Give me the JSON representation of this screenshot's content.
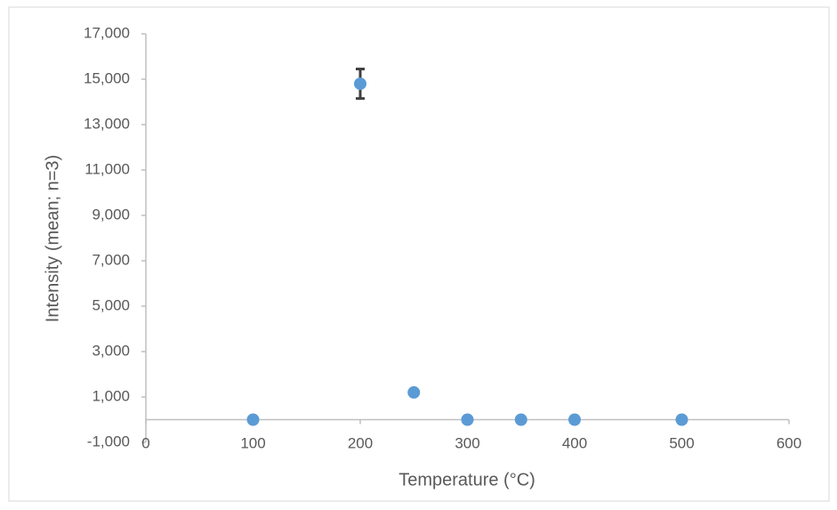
{
  "chart_data": {
    "type": "scatter",
    "xlabel": "Temperature (°C)",
    "ylabel": "Intensity (mean; n=3)",
    "x": [
      100,
      200,
      250,
      300,
      350,
      400,
      500
    ],
    "series": [
      {
        "color": "#5b9bd5",
        "values": [
          0,
          14800,
          1200,
          0,
          0,
          0,
          0
        ],
        "errors": [
          0,
          650,
          60,
          0,
          0,
          0,
          0
        ],
        "error_color": "#404040"
      }
    ],
    "xlim": [
      0,
      600
    ],
    "xticks": [
      0,
      100,
      200,
      300,
      400,
      500,
      600
    ],
    "ylim": [
      -1000,
      17000
    ],
    "yticks": [
      {
        "value": -1000,
        "label": "-1,000"
      },
      {
        "value": 1000,
        "label": "1,000"
      },
      {
        "value": 3000,
        "label": "3,000"
      },
      {
        "value": 5000,
        "label": "5,000"
      },
      {
        "value": 7000,
        "label": "7,000"
      },
      {
        "value": 9000,
        "label": "9,000"
      },
      {
        "value": 11000,
        "label": "11,000"
      },
      {
        "value": 13000,
        "label": "13,000"
      },
      {
        "value": 15000,
        "label": "15,000"
      },
      {
        "value": 17000,
        "label": "17,000"
      }
    ],
    "grid": false
  }
}
